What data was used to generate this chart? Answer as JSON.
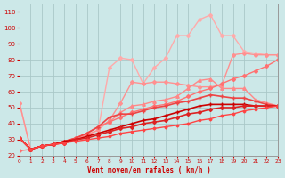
{
  "xlabel": "Vent moyen/en rafales ( km/h )",
  "background_color": "#cce8e8",
  "grid_color": "#aac8c8",
  "xlim": [
    0,
    23
  ],
  "ylim": [
    20,
    115
  ],
  "yticks": [
    20,
    30,
    40,
    50,
    60,
    70,
    80,
    90,
    100,
    110
  ],
  "xticks": [
    0,
    1,
    2,
    3,
    4,
    5,
    6,
    7,
    8,
    9,
    10,
    11,
    12,
    13,
    14,
    15,
    16,
    17,
    18,
    19,
    20,
    21,
    22,
    23
  ],
  "series": [
    {
      "color": "#ffaaaa",
      "lw": 1.0,
      "marker": "D",
      "ms": 2.0,
      "data_x": [
        0,
        1,
        2,
        3,
        4,
        5,
        6,
        7,
        8,
        9,
        10,
        11,
        12,
        13,
        14,
        15,
        16,
        17,
        18,
        19,
        20,
        21,
        22,
        23
      ],
      "data_y": [
        53,
        24,
        26,
        27,
        28,
        30,
        33,
        36,
        75,
        81,
        80,
        65,
        75,
        81,
        95,
        95,
        105,
        108,
        95,
        95,
        85,
        84,
        83,
        83
      ]
    },
    {
      "color": "#ff9090",
      "lw": 1.0,
      "marker": "D",
      "ms": 2.0,
      "data_x": [
        0,
        1,
        2,
        3,
        4,
        5,
        6,
        7,
        8,
        9,
        10,
        11,
        12,
        13,
        14,
        15,
        16,
        17,
        18,
        19,
        20,
        21,
        22,
        23
      ],
      "data_y": [
        53,
        24,
        26,
        27,
        28,
        30,
        33,
        36,
        42,
        53,
        66,
        65,
        66,
        66,
        65,
        64,
        63,
        63,
        64,
        83,
        84,
        83,
        83,
        83
      ]
    },
    {
      "color": "#ff8888",
      "lw": 1.0,
      "marker": "^",
      "ms": 2.5,
      "data_x": [
        0,
        1,
        2,
        3,
        4,
        5,
        6,
        7,
        8,
        9,
        10,
        11,
        12,
        13,
        14,
        15,
        16,
        17,
        18,
        19,
        20,
        21,
        22,
        23
      ],
      "data_y": [
        31,
        24,
        26,
        27,
        29,
        31,
        34,
        38,
        41,
        47,
        51,
        52,
        54,
        55,
        57,
        62,
        67,
        68,
        62,
        62,
        62,
        55,
        53,
        51
      ]
    },
    {
      "color": "#ff7070",
      "lw": 1.0,
      "marker": "D",
      "ms": 2.0,
      "data_x": [
        0,
        1,
        2,
        3,
        4,
        5,
        6,
        7,
        8,
        9,
        10,
        11,
        12,
        13,
        14,
        15,
        16,
        17,
        18,
        19,
        20,
        21,
        22,
        23
      ],
      "data_y": [
        23,
        24,
        26,
        27,
        29,
        31,
        34,
        38,
        41,
        44,
        47,
        49,
        51,
        52,
        54,
        57,
        60,
        62,
        65,
        68,
        70,
        73,
        76,
        80
      ]
    },
    {
      "color": "#ee4444",
      "lw": 1.2,
      "marker": "+",
      "ms": 3.0,
      "data_x": [
        0,
        1,
        2,
        3,
        4,
        5,
        6,
        7,
        8,
        9,
        10,
        11,
        12,
        13,
        14,
        15,
        16,
        17,
        18,
        19,
        20,
        21,
        22,
        23
      ],
      "data_y": [
        31,
        24,
        26,
        27,
        29,
        31,
        34,
        38,
        44,
        46,
        46,
        48,
        50,
        51,
        53,
        54,
        56,
        58,
        57,
        56,
        56,
        54,
        52,
        51
      ]
    },
    {
      "color": "#cc0000",
      "lw": 1.2,
      "marker": "+",
      "ms": 3.0,
      "data_x": [
        0,
        1,
        2,
        3,
        4,
        5,
        6,
        7,
        8,
        9,
        10,
        11,
        12,
        13,
        14,
        15,
        16,
        17,
        18,
        19,
        20,
        21,
        22,
        23
      ],
      "data_y": [
        31,
        24,
        26,
        27,
        29,
        30,
        32,
        34,
        36,
        38,
        40,
        42,
        43,
        45,
        47,
        49,
        51,
        52,
        52,
        52,
        52,
        51,
        51,
        51
      ]
    },
    {
      "color": "#dd2222",
      "lw": 1.2,
      "marker": "D",
      "ms": 2.0,
      "data_x": [
        0,
        1,
        2,
        3,
        4,
        5,
        6,
        7,
        8,
        9,
        10,
        11,
        12,
        13,
        14,
        15,
        16,
        17,
        18,
        19,
        20,
        21,
        22,
        23
      ],
      "data_y": [
        31,
        24,
        26,
        27,
        28,
        30,
        31,
        33,
        35,
        37,
        38,
        40,
        41,
        42,
        44,
        46,
        47,
        49,
        50,
        50,
        51,
        51,
        51,
        51
      ]
    },
    {
      "color": "#ff4444",
      "lw": 1.0,
      "marker": "D",
      "ms": 1.5,
      "data_x": [
        0,
        1,
        2,
        3,
        4,
        5,
        6,
        7,
        8,
        9,
        10,
        11,
        12,
        13,
        14,
        15,
        16,
        17,
        18,
        19,
        20,
        21,
        22,
        23
      ],
      "data_y": [
        31,
        24,
        26,
        27,
        28,
        29,
        30,
        31,
        32,
        34,
        35,
        36,
        37,
        38,
        39,
        40,
        42,
        43,
        45,
        46,
        48,
        49,
        50,
        51
      ]
    }
  ]
}
